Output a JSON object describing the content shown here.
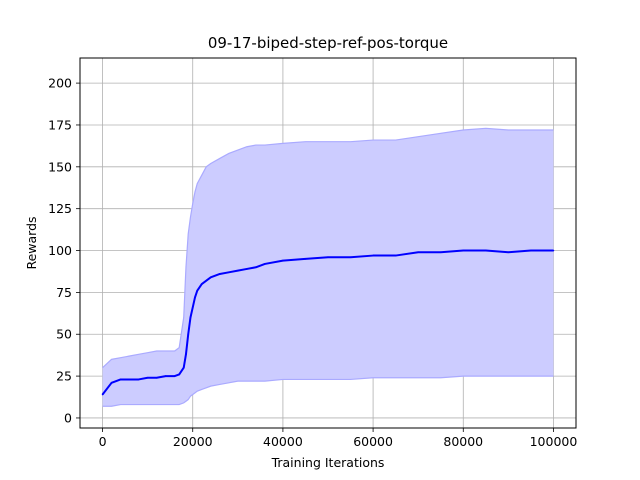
{
  "chart_data": {
    "type": "line",
    "title": "09-17-biped-step-ref-pos-torque",
    "xlabel": "Training Iterations",
    "ylabel": "Rewards",
    "xlim": [
      -5000,
      105000
    ],
    "ylim": [
      -6,
      215
    ],
    "grid": true,
    "xticks": [
      0,
      20000,
      40000,
      60000,
      80000,
      100000
    ],
    "xtick_labels": [
      "0",
      "20000",
      "40000",
      "60000",
      "80000",
      "100000"
    ],
    "yticks": [
      0,
      25,
      50,
      75,
      100,
      125,
      150,
      175,
      200
    ],
    "ytick_labels": [
      "0",
      "25",
      "50",
      "75",
      "100",
      "125",
      "150",
      "175",
      "200"
    ],
    "colors": {
      "mean_line": "#0000ff",
      "band_fill": "#ccccff",
      "band_edge": "#aaaaff",
      "grid": "#b0b0b0"
    },
    "x": [
      0,
      2000,
      4000,
      6000,
      8000,
      10000,
      12000,
      14000,
      16000,
      17000,
      18000,
      18500,
      19000,
      19500,
      20000,
      20500,
      21000,
      22000,
      23000,
      24000,
      26000,
      28000,
      30000,
      32000,
      34000,
      36000,
      40000,
      45000,
      50000,
      55000,
      60000,
      65000,
      70000,
      75000,
      80000,
      85000,
      90000,
      95000,
      100000
    ],
    "series": [
      {
        "values": [
          14,
          21,
          23,
          23,
          23,
          24,
          24,
          25,
          25,
          26,
          30,
          38,
          50,
          60,
          66,
          72,
          76,
          80,
          82,
          84,
          86,
          87,
          88,
          89,
          90,
          92,
          94,
          95,
          96,
          96,
          97,
          97,
          99,
          99,
          100,
          100,
          99,
          100,
          100
        ]
      },
      {
        "values": [
          7,
          7,
          8,
          8,
          8,
          8,
          8,
          8,
          8,
          8,
          9,
          10,
          11,
          13,
          14,
          15,
          16,
          17,
          18,
          19,
          20,
          21,
          22,
          22,
          22,
          22,
          23,
          23,
          23,
          23,
          24,
          24,
          24,
          24,
          25,
          25,
          25,
          25,
          25
        ]
      },
      {
        "values": [
          30,
          35,
          36,
          37,
          38,
          39,
          40,
          40,
          40,
          42,
          60,
          90,
          110,
          120,
          128,
          135,
          140,
          145,
          150,
          152,
          155,
          158,
          160,
          162,
          163,
          163,
          164,
          165,
          165,
          165,
          166,
          166,
          168,
          170,
          172,
          173,
          172,
          172,
          172
        ]
      }
    ]
  }
}
